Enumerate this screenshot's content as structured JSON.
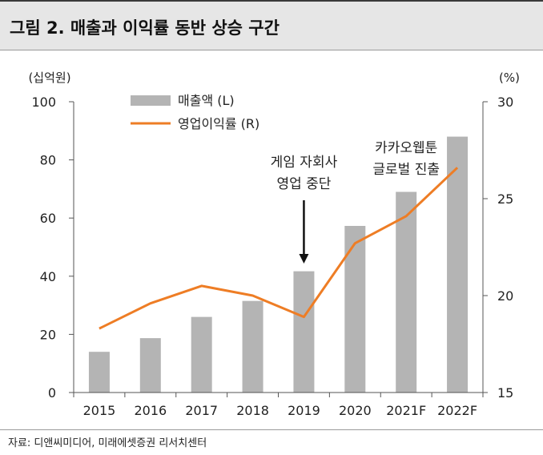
{
  "header": {
    "title": "그림 2. 매출과 이익률 동반 상승 구간"
  },
  "chart_data": {
    "type": "bar+line",
    "categories": [
      "2015",
      "2016",
      "2017",
      "2018",
      "2019",
      "2020",
      "2021F",
      "2022F"
    ],
    "series": [
      {
        "name": "매출액 (L)",
        "type": "bar",
        "axis": "left",
        "values": [
          14,
          18.7,
          26,
          31.5,
          41.7,
          57.3,
          69,
          88
        ]
      },
      {
        "name": "영업이익률 (R)",
        "type": "line",
        "axis": "right",
        "values": [
          18.3,
          19.6,
          20.5,
          20.0,
          18.9,
          22.7,
          24.1,
          26.6
        ]
      }
    ],
    "y_left": {
      "label": "(십억원)",
      "lim": [
        0,
        100
      ],
      "ticks": [
        "0",
        "20",
        "40",
        "60",
        "80",
        "100"
      ]
    },
    "y_right": {
      "label": "(%)",
      "lim": [
        15,
        30
      ],
      "ticks": [
        "15",
        "20",
        "25",
        "30"
      ]
    },
    "annotations": [
      {
        "lines": [
          "게임 자회사",
          "영업 중단"
        ],
        "category": "2019",
        "arrow": true
      },
      {
        "lines": [
          "카카오웹툰",
          "글로벌 진출"
        ],
        "category": "2021F",
        "arrow": false
      }
    ],
    "colors": {
      "bar": "#b4b4b4",
      "line": "#ee7d25",
      "axis": "#555555",
      "text": "#222222"
    }
  },
  "footer": {
    "source": "자료: 디앤씨미디어, 미래에셋증권 리서치센터"
  }
}
